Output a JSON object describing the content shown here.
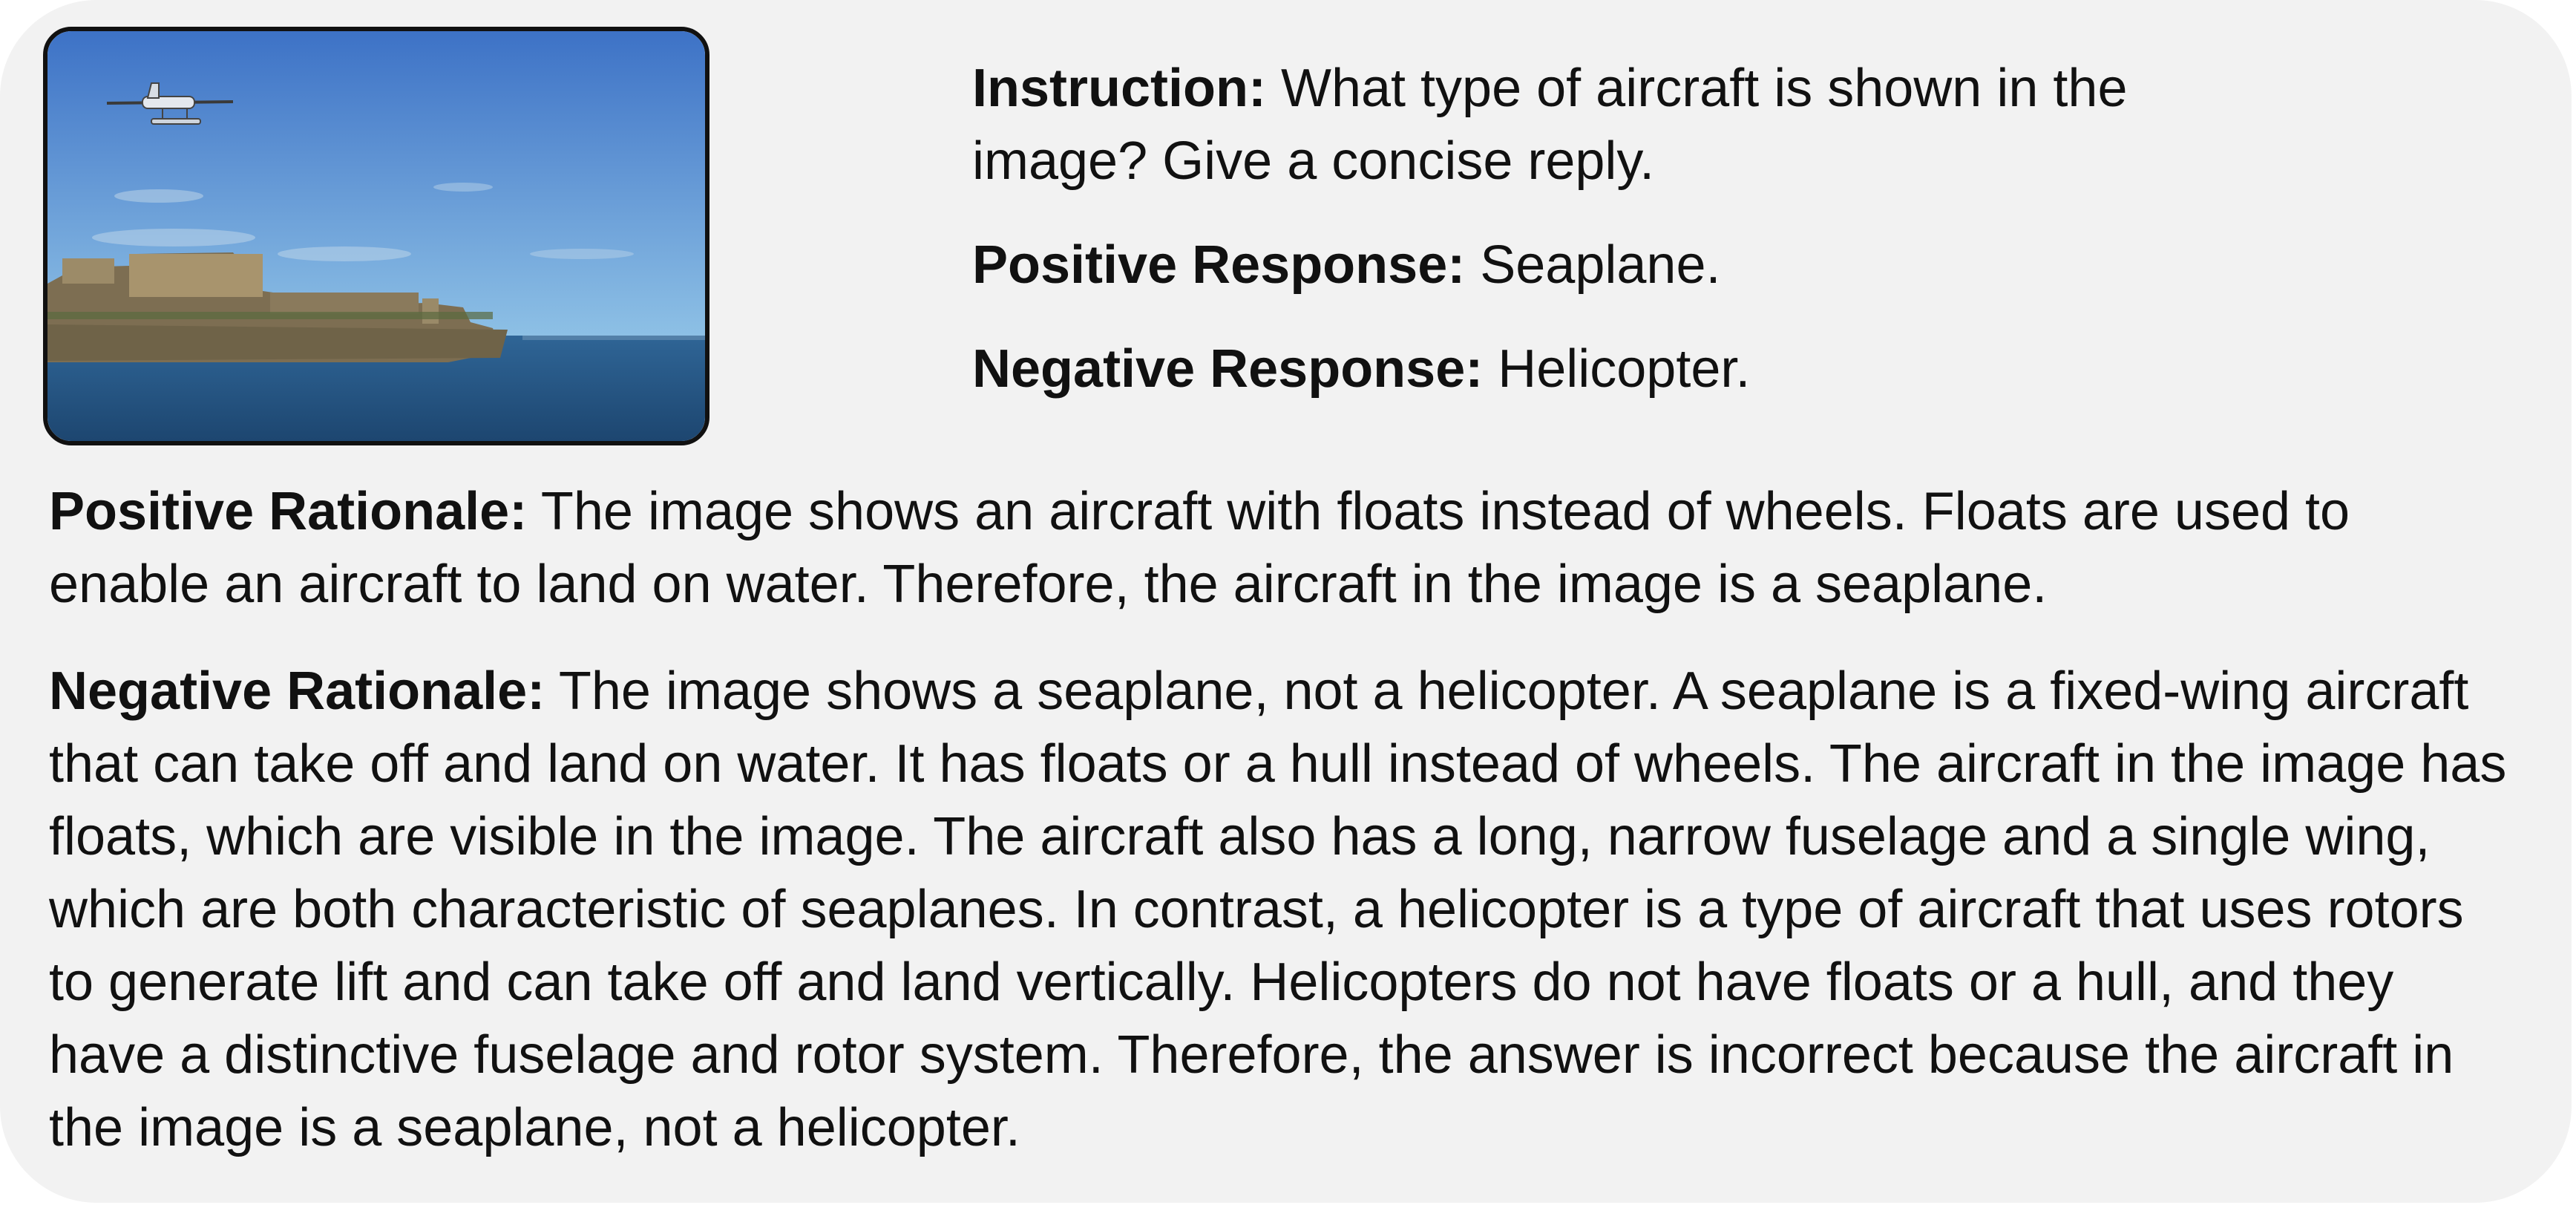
{
  "image": {
    "icon": "seaplane-over-harbour-photo",
    "colors": {
      "sky_top": "#3d72c6",
      "sky_bottom": "#8fc2e6",
      "sea": "#24527f",
      "fort": "#8a7a5c"
    }
  },
  "instruction": {
    "label": "Instruction:",
    "text": "What type of aircraft is shown in the image? Give a concise reply."
  },
  "positive_response": {
    "label": "Positive Response:",
    "text": "Seaplane."
  },
  "negative_response": {
    "label": "Negative Response:",
    "text": "Helicopter."
  },
  "positive_rationale": {
    "label": "Positive Rationale:",
    "text": "The image shows an aircraft with floats instead of wheels. Floats are used to enable an aircraft to land on water. Therefore, the aircraft in the image is a seaplane."
  },
  "negative_rationale": {
    "label": "Negative Rationale:",
    "text": "The image shows a seaplane, not a helicopter. A seaplane is a fixed-wing aircraft that can take off and land on water. It has floats or a hull instead of wheels. The aircraft in the image has floats, which are visible in the image. The aircraft also has a long, narrow fuselage and a single wing, which are both characteristic of seaplanes. In contrast, a helicopter is a type of aircraft that uses rotors to generate lift and can take off and land vertically. Helicopters do not have floats or a hull, and they have a distinctive fuselage and rotor system. Therefore, the answer is incorrect because the aircraft in the image is a seaplane, not a helicopter."
  }
}
